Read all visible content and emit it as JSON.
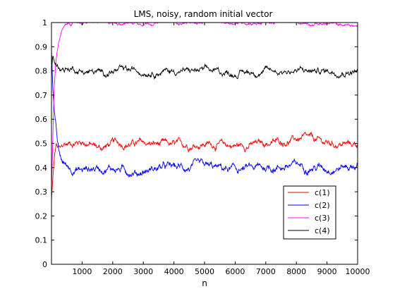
{
  "chart_data": {
    "type": "line",
    "title": "LMS, noisy, random initial vector",
    "xlabel": "n",
    "ylabel": "",
    "xlim": [
      0,
      10000
    ],
    "ylim": [
      0,
      1
    ],
    "xticks": [
      1000,
      2000,
      3000,
      4000,
      5000,
      6000,
      7000,
      8000,
      9000,
      10000
    ],
    "yticks": [
      0,
      0.1,
      0.2,
      0.3,
      0.4,
      0.5,
      0.6,
      0.7,
      0.8,
      0.9,
      1
    ],
    "grid": false,
    "legend_position": "lower-right",
    "series": [
      {
        "name": "c(1)",
        "color": "#ff0000",
        "start": 0.26,
        "steady": 0.5,
        "noise": 0.009,
        "points": [
          [
            0,
            0.26
          ],
          [
            50,
            0.36
          ],
          [
            100,
            0.44
          ],
          [
            150,
            0.49
          ],
          [
            200,
            0.48
          ],
          [
            300,
            0.47
          ],
          [
            400,
            0.49
          ],
          [
            600,
            0.5
          ],
          [
            1000,
            0.51
          ],
          [
            1600,
            0.48
          ],
          [
            2000,
            0.5
          ],
          [
            3000,
            0.5
          ],
          [
            4000,
            0.49
          ],
          [
            5000,
            0.5
          ],
          [
            6000,
            0.49
          ],
          [
            7000,
            0.5
          ],
          [
            8200,
            0.52
          ],
          [
            9000,
            0.5
          ],
          [
            10000,
            0.495
          ]
        ]
      },
      {
        "name": "c(2)",
        "color": "#0000ff",
        "start": 0.89,
        "steady": 0.4,
        "noise": 0.01,
        "points": [
          [
            0,
            0.89
          ],
          [
            60,
            0.7
          ],
          [
            120,
            0.6
          ],
          [
            180,
            0.52
          ],
          [
            250,
            0.45
          ],
          [
            350,
            0.42
          ],
          [
            450,
            0.41
          ],
          [
            600,
            0.4
          ],
          [
            1000,
            0.39
          ],
          [
            1500,
            0.4
          ],
          [
            2000,
            0.4
          ],
          [
            2800,
            0.38
          ],
          [
            3500,
            0.4
          ],
          [
            4000,
            0.4
          ],
          [
            5000,
            0.4
          ],
          [
            6000,
            0.39
          ],
          [
            7000,
            0.4
          ],
          [
            8000,
            0.41
          ],
          [
            9000,
            0.4
          ],
          [
            10000,
            0.41
          ]
        ]
      },
      {
        "name": "c(3)",
        "color": "#ff00ff",
        "start": 0.3,
        "steady": 1.0,
        "noise": 0.004,
        "points": [
          [
            0,
            0.3
          ],
          [
            40,
            0.5
          ],
          [
            80,
            0.7
          ],
          [
            130,
            0.82
          ],
          [
            180,
            0.88
          ],
          [
            250,
            0.93
          ],
          [
            350,
            0.97
          ],
          [
            500,
            0.99
          ],
          [
            700,
            1.0
          ],
          [
            1000,
            1.0
          ],
          [
            2000,
            1.0
          ],
          [
            3000,
            1.0
          ],
          [
            4000,
            1.0
          ],
          [
            5000,
            1.0
          ],
          [
            6000,
            1.0
          ],
          [
            7000,
            1.0
          ],
          [
            8000,
            1.0
          ],
          [
            9000,
            0.995
          ],
          [
            10000,
            0.985
          ]
        ]
      },
      {
        "name": "c(4)",
        "color": "#000000",
        "start": 0.8,
        "steady": 0.8,
        "noise": 0.008,
        "points": [
          [
            0,
            0.8
          ],
          [
            40,
            0.86
          ],
          [
            80,
            0.84
          ],
          [
            120,
            0.83
          ],
          [
            200,
            0.82
          ],
          [
            400,
            0.81
          ],
          [
            700,
            0.81
          ],
          [
            1000,
            0.8
          ],
          [
            1700,
            0.79
          ],
          [
            2000,
            0.8
          ],
          [
            3000,
            0.8
          ],
          [
            4000,
            0.8
          ],
          [
            5000,
            0.8
          ],
          [
            6000,
            0.79
          ],
          [
            7000,
            0.8
          ],
          [
            8000,
            0.8
          ],
          [
            9000,
            0.8
          ],
          [
            10000,
            0.8
          ]
        ]
      }
    ]
  }
}
